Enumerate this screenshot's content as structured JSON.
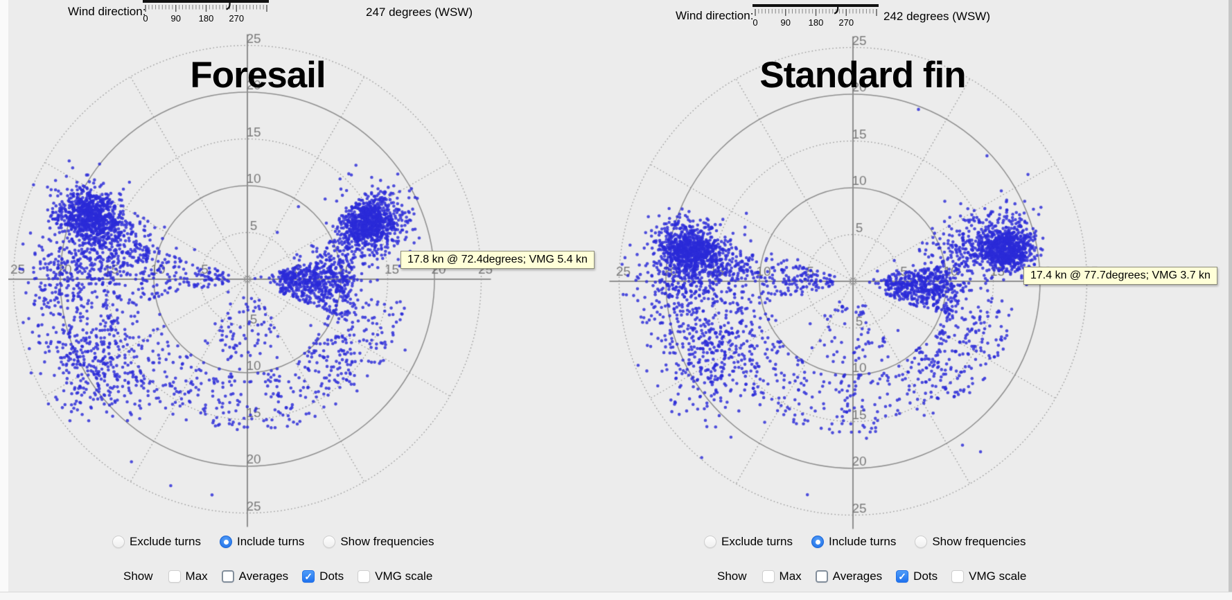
{
  "colors": {
    "background": "#ececec",
    "dots": "#2b2bd8",
    "grid": "#8f8f8f",
    "grid_dotted": "#979797",
    "axis_labels": "#7b7b7b",
    "slider_track": "#111111",
    "tooltip_bg": "#ffffd8",
    "tooltip_border": "#8e8e7a",
    "radio_selected": "#1a6ce6",
    "checkbox_checked": "#2f7cf6"
  },
  "panels": [
    {
      "wind": {
        "label": "Wind direction:",
        "tick_labels": [
          "0",
          "90",
          "180",
          "270"
        ],
        "value_deg": 247,
        "value_text": "247 degrees (WSW)"
      },
      "radios": [
        {
          "label": "Exclude turns",
          "selected": false
        },
        {
          "label": "Include turns",
          "selected": true
        },
        {
          "label": "Show frequencies",
          "selected": false
        }
      ],
      "show_label": "Show",
      "checkboxes": [
        {
          "label": "Max",
          "checked": false,
          "focused": false
        },
        {
          "label": "Averages",
          "checked": false,
          "focused": true
        },
        {
          "label": "Dots",
          "checked": true,
          "focused": false
        },
        {
          "label": "VMG scale",
          "checked": false,
          "focused": false
        }
      ]
    },
    {
      "wind": {
        "label": "Wind direction:",
        "tick_labels": [
          "0",
          "90",
          "180",
          "270"
        ],
        "value_deg": 242,
        "value_text": "242 degrees (WSW)"
      },
      "radios": [
        {
          "label": "Exclude turns",
          "selected": false
        },
        {
          "label": "Include turns",
          "selected": true
        },
        {
          "label": "Show frequencies",
          "selected": false
        }
      ],
      "show_label": "Show",
      "checkboxes": [
        {
          "label": "Max",
          "checked": false,
          "focused": false
        },
        {
          "label": "Averages",
          "checked": false,
          "focused": true
        },
        {
          "label": "Dots",
          "checked": true,
          "focused": false
        },
        {
          "label": "VMG scale",
          "checked": false,
          "focused": false
        }
      ]
    }
  ],
  "chart_data": [
    {
      "type": "scatter",
      "coordinate_system": "polar",
      "title": "Foresail",
      "units": "knots",
      "ring_ticks": [
        5,
        10,
        15,
        20,
        25
      ],
      "ring_max": 25,
      "spoke_step_deg": 30,
      "angle_reference": "wind direction at top, boat speed as radius",
      "wind_direction_deg": 247,
      "wind_direction_compass": "WSW",
      "highlight": {
        "label": "17.8 kn @ 72.4degrees; VMG 5.4 kn",
        "speed_kn": 17.8,
        "angle_deg": 72.4,
        "vmg_kn": 5.4
      },
      "seed": 7,
      "clusters": [
        {
          "kind": "gauss",
          "angle_deg": 65,
          "angle_sd": 4.5,
          "speed_kn": 14.8,
          "speed_sd": 1.6,
          "n": 650
        },
        {
          "kind": "gauss",
          "angle_deg": 69,
          "angle_sd": 8,
          "speed_kn": 13.5,
          "speed_sd": 2.6,
          "n": 300
        },
        {
          "kind": "gauss",
          "angle_deg": 90,
          "angle_sd": 6,
          "speed_kn": 7.5,
          "speed_sd": 2.4,
          "n": 180
        },
        {
          "kind": "uniform",
          "angle_min": 76,
          "angle_max": 112,
          "speed_min": 3.5,
          "speed_max": 11.5,
          "n": 380
        },
        {
          "kind": "uniform",
          "angle_min": 98,
          "angle_max": 138,
          "speed_min": 9.5,
          "speed_max": 17,
          "n": 150
        },
        {
          "kind": "gauss",
          "angle_deg": 292,
          "angle_sd": 4.5,
          "speed_kn": 18.3,
          "speed_sd": 1.7,
          "n": 700
        },
        {
          "kind": "gauss",
          "angle_deg": 287,
          "angle_sd": 7.5,
          "speed_kn": 16,
          "speed_sd": 3,
          "n": 300
        },
        {
          "kind": "uniform",
          "angle_min": 258,
          "angle_max": 288,
          "speed_min": 2,
          "speed_max": 23,
          "n": 300
        },
        {
          "kind": "gauss",
          "angle_deg": 271,
          "angle_sd": 5,
          "speed_kn": 19,
          "speed_sd": 2.5,
          "n": 150
        },
        {
          "kind": "gauss",
          "angle_deg": 242,
          "angle_sd": 11,
          "speed_kn": 18.5,
          "speed_sd": 3,
          "n": 420
        },
        {
          "kind": "uniform",
          "angle_min": 135,
          "angle_max": 235,
          "speed_min": 10,
          "speed_max": 16.5,
          "n": 240
        },
        {
          "kind": "uniform",
          "angle_min": 148,
          "angle_max": 215,
          "speed_min": 2.5,
          "speed_max": 9,
          "n": 70
        },
        {
          "kind": "uniform",
          "angle_min": 30,
          "angle_max": 330,
          "speed_min": 1,
          "speed_max": 24,
          "n": 30
        }
      ]
    },
    {
      "type": "scatter",
      "coordinate_system": "polar",
      "title": "Standard fin",
      "units": "knots",
      "ring_ticks": [
        5,
        10,
        15,
        20,
        25
      ],
      "ring_max": 25,
      "spoke_step_deg": 30,
      "angle_reference": "wind direction at top, boat speed as radius",
      "wind_direction_deg": 242,
      "wind_direction_compass": "WSW",
      "highlight": {
        "label": "17.4 kn @ 77.7degrees; VMG 3.7 kn",
        "speed_kn": 17.4,
        "angle_deg": 77.7,
        "vmg_kn": 3.7
      },
      "seed": 13,
      "clusters": [
        {
          "kind": "gauss",
          "angle_deg": 78,
          "angle_sd": 4.2,
          "speed_kn": 16.8,
          "speed_sd": 1.5,
          "n": 700
        },
        {
          "kind": "gauss",
          "angle_deg": 73,
          "angle_sd": 7.5,
          "speed_kn": 14,
          "speed_sd": 2.8,
          "n": 280
        },
        {
          "kind": "gauss",
          "angle_deg": 93,
          "angle_sd": 6,
          "speed_kn": 8,
          "speed_sd": 2.4,
          "n": 200
        },
        {
          "kind": "uniform",
          "angle_min": 80,
          "angle_max": 112,
          "speed_min": 3.5,
          "speed_max": 11.5,
          "n": 320
        },
        {
          "kind": "uniform",
          "angle_min": 98,
          "angle_max": 140,
          "speed_min": 10,
          "speed_max": 17.5,
          "n": 170
        },
        {
          "kind": "gauss",
          "angle_deg": 281,
          "angle_sd": 4.5,
          "speed_kn": 17.8,
          "speed_sd": 1.6,
          "n": 700
        },
        {
          "kind": "gauss",
          "angle_deg": 277,
          "angle_sd": 7.5,
          "speed_kn": 15.5,
          "speed_sd": 3,
          "n": 280
        },
        {
          "kind": "uniform",
          "angle_min": 255,
          "angle_max": 286,
          "speed_min": 2,
          "speed_max": 23,
          "n": 280
        },
        {
          "kind": "gauss",
          "angle_deg": 270,
          "angle_sd": 5,
          "speed_kn": 19,
          "speed_sd": 2.5,
          "n": 140
        },
        {
          "kind": "gauss",
          "angle_deg": 244,
          "angle_sd": 10,
          "speed_kn": 17.5,
          "speed_sd": 3.2,
          "n": 380
        },
        {
          "kind": "uniform",
          "angle_min": 135,
          "angle_max": 232,
          "speed_min": 10,
          "speed_max": 16.5,
          "n": 220
        },
        {
          "kind": "uniform",
          "angle_min": 150,
          "angle_max": 215,
          "speed_min": 2.5,
          "speed_max": 9,
          "n": 60
        },
        {
          "kind": "uniform",
          "angle_min": 20,
          "angle_max": 340,
          "speed_min": 1,
          "speed_max": 24,
          "n": 25
        }
      ]
    }
  ]
}
